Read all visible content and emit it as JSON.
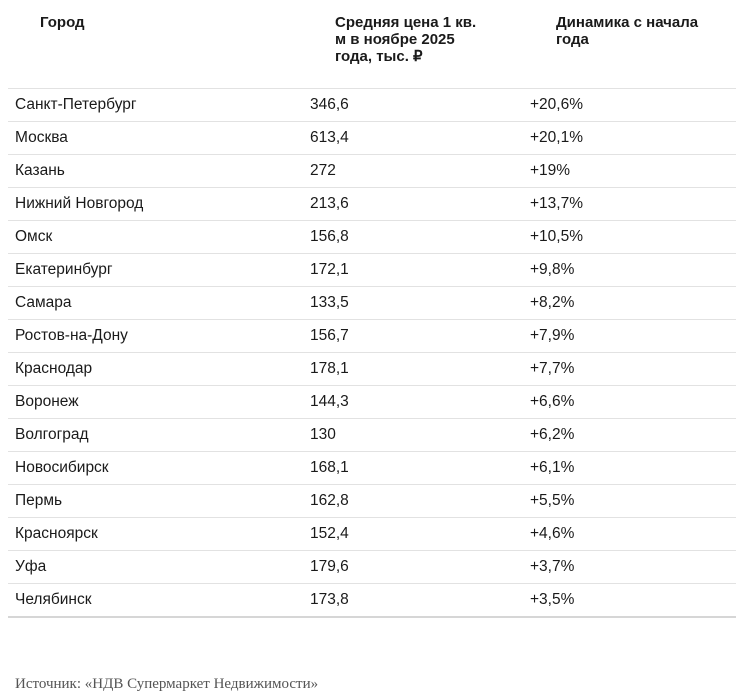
{
  "table": {
    "header": [
      "Город",
      "Средняя цена 1 кв. м в ноябре 2025 года, тыс. ₽",
      "Динамика с начала года"
    ],
    "rows": [
      [
        "Санкт-Петербург",
        "346,6",
        "+20,6%"
      ],
      [
        "Москва",
        "613,4",
        "+20,1%"
      ],
      [
        "Казань",
        "272",
        "+19%"
      ],
      [
        "Нижний Новгород",
        "213,6",
        "+13,7%"
      ],
      [
        "Омск",
        "156,8",
        "+10,5%"
      ],
      [
        "Екатеринбург",
        "172,1",
        "+9,8%"
      ],
      [
        "Самара",
        "133,5",
        "+8,2%"
      ],
      [
        "Ростов-на-Дону",
        "156,7",
        "+7,9%"
      ],
      [
        "Краснодар",
        "178,1",
        "+7,7%"
      ],
      [
        "Воронеж",
        "144,3",
        "+6,6%"
      ],
      [
        "Волгоград",
        "130",
        "+6,2%"
      ],
      [
        "Новосибирск",
        "168,1",
        "+6,1%"
      ],
      [
        "Пермь",
        "162,8",
        "+5,5%"
      ],
      [
        "Красноярск",
        "152,4",
        "+4,6%"
      ],
      [
        "Уфа",
        "179,6",
        "+3,7%"
      ],
      [
        "Челябинск",
        "173,8",
        "+3,5%"
      ]
    ]
  },
  "source": "Источник: «НДВ Супермаркет Недвижимости»"
}
